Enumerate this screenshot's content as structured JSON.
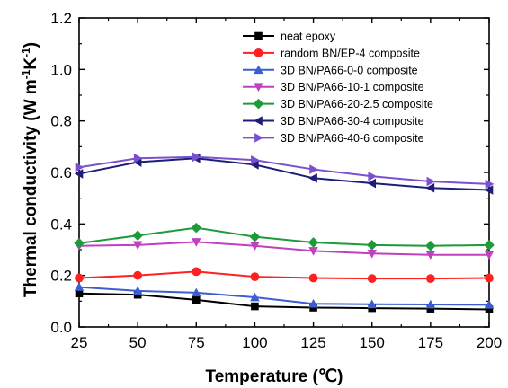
{
  "chart_data": {
    "type": "line",
    "xlabel": "Temperature (℃)",
    "ylabel_parts": [
      "Thermal conductivity (W m",
      "-1",
      "K",
      "-1",
      ")"
    ],
    "x": [
      25,
      50,
      75,
      100,
      125,
      150,
      175,
      200
    ],
    "xlim": [
      25,
      200
    ],
    "ylim": [
      0.0,
      1.2
    ],
    "xticks": [
      25,
      50,
      75,
      100,
      125,
      150,
      175,
      200
    ],
    "yticks": [
      "0.0",
      "0.2",
      "0.4",
      "0.6",
      "0.8",
      "1.0",
      "1.2"
    ],
    "grid": false,
    "legend_position": "top-right",
    "series": [
      {
        "name": "neat epoxy",
        "color": "#000000",
        "marker": "square",
        "values": [
          0.13,
          0.125,
          0.105,
          0.08,
          0.075,
          0.073,
          0.071,
          0.068
        ]
      },
      {
        "name": "random BN/EP-4 composite",
        "color": "#ff2020",
        "marker": "circle",
        "values": [
          0.19,
          0.2,
          0.215,
          0.195,
          0.19,
          0.188,
          0.188,
          0.19
        ]
      },
      {
        "name": "3D BN/PA66-0-0 composite",
        "color": "#3a5fd0",
        "marker": "triangle-up",
        "values": [
          0.155,
          0.14,
          0.133,
          0.115,
          0.09,
          0.088,
          0.087,
          0.086
        ]
      },
      {
        "name": "3D BN/PA66-10-1 composite",
        "color": "#c040c0",
        "marker": "triangle-down",
        "values": [
          0.315,
          0.318,
          0.33,
          0.315,
          0.295,
          0.285,
          0.28,
          0.28
        ]
      },
      {
        "name": "3D BN/PA66-20-2.5 composite",
        "color": "#1f9a3a",
        "marker": "diamond",
        "values": [
          0.325,
          0.355,
          0.385,
          0.35,
          0.328,
          0.318,
          0.315,
          0.318
        ]
      },
      {
        "name": "3D BN/PA66-30-4 composite",
        "color": "#1e1e78",
        "marker": "triangle-left",
        "values": [
          0.595,
          0.64,
          0.655,
          0.63,
          0.578,
          0.558,
          0.54,
          0.532
        ]
      },
      {
        "name": "3D BN/PA66-40-6 composite",
        "color": "#7a4fd0",
        "marker": "triangle-right",
        "values": [
          0.62,
          0.655,
          0.66,
          0.648,
          0.612,
          0.585,
          0.565,
          0.555
        ]
      }
    ]
  }
}
